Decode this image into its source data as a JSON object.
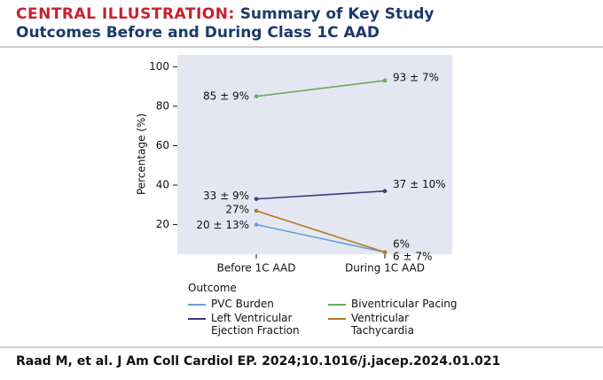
{
  "chart_data": {
    "type": "line",
    "title_label": "CENTRAL ILLUSTRATION:",
    "title": "Summary of Key Study Outcomes Before and During Class 1C AAD",
    "y_label": "Percentage (%)",
    "categories": [
      "Before 1C AAD",
      "During 1C AAD"
    ],
    "ylim": [
      5,
      106
    ],
    "yticks": [
      20,
      40,
      60,
      80,
      100
    ],
    "grid": false,
    "legend_title": "Outcome",
    "series": [
      {
        "name": "PVC Burden",
        "color": "#6a9fd4",
        "values": [
          20,
          6
        ],
        "value_labels": [
          "20 ± 13%",
          "6 ± 7%"
        ]
      },
      {
        "name": "Biventricular Pacing",
        "color": "#6aaa5a",
        "values": [
          85,
          93
        ],
        "value_labels": [
          "85 ± 9%",
          "93 ± 7%"
        ]
      },
      {
        "name": "Left Ventricular Ejection Fraction",
        "color": "#3c3c7a",
        "values": [
          33,
          37
        ],
        "value_labels": [
          "33 ± 9%",
          "37 ± 10%"
        ]
      },
      {
        "name": "Ventricular Tachycardia",
        "color": "#b07a1e",
        "values": [
          27,
          6
        ],
        "value_labels": [
          "27%",
          "6%"
        ]
      }
    ]
  },
  "footer": {
    "citation": "Raad M, et al. J Am Coll Cardiol EP. 2024;10.1016/j.jacep.2024.01.021"
  }
}
